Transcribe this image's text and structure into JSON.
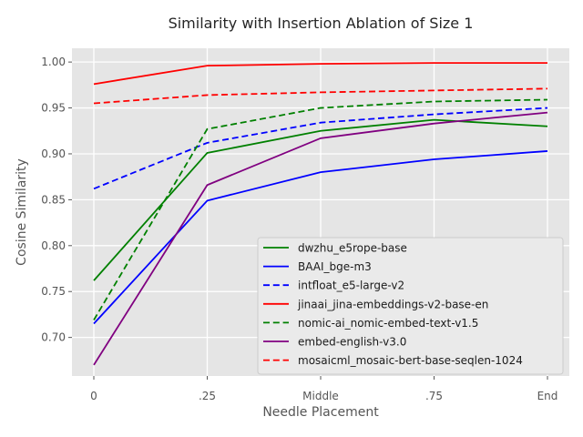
{
  "figure": {
    "title": "Similarity with Insertion Ablation of Size 1",
    "xlabel": "Needle Placement",
    "ylabel": "Cosine Similarity"
  },
  "chart_data": {
    "type": "line",
    "title": "Similarity with Insertion Ablation of Size 1",
    "xlabel": "Needle Placement",
    "ylabel": "Cosine Similarity",
    "categories": [
      "0",
      ".25",
      "Middle",
      ".75",
      "End"
    ],
    "yticks": [
      0.7,
      0.75,
      0.8,
      0.85,
      0.9,
      0.95,
      1.0
    ],
    "ylim": [
      0.658,
      1.015
    ],
    "grid": true,
    "legend_position": "lower-right-inside",
    "series": [
      {
        "name": "dwzhu_e5rope-base",
        "color": "#008000",
        "dash": "solid",
        "values": [
          0.762,
          0.901,
          0.925,
          0.937,
          0.93
        ]
      },
      {
        "name": "BAAI_bge-m3",
        "color": "#0000ff",
        "dash": "solid",
        "values": [
          0.715,
          0.849,
          0.88,
          0.894,
          0.903
        ]
      },
      {
        "name": "intfloat_e5-large-v2",
        "color": "#0000ff",
        "dash": "dashed",
        "values": [
          0.862,
          0.912,
          0.934,
          0.943,
          0.95
        ]
      },
      {
        "name": "jinaai_jina-embeddings-v2-base-en",
        "color": "#ff0000",
        "dash": "solid",
        "values": [
          0.976,
          0.996,
          0.998,
          0.999,
          0.999
        ]
      },
      {
        "name": "nomic-ai_nomic-embed-text-v1.5",
        "color": "#008000",
        "dash": "dashed",
        "values": [
          0.719,
          0.927,
          0.95,
          0.957,
          0.959
        ]
      },
      {
        "name": "embed-english-v3.0",
        "color": "#800080",
        "dash": "solid",
        "values": [
          0.67,
          0.866,
          0.917,
          0.933,
          0.945
        ]
      },
      {
        "name": "mosaicml_mosaic-bert-base-seqlen-1024",
        "color": "#ff0000",
        "dash": "dashed",
        "values": [
          0.955,
          0.964,
          0.967,
          0.969,
          0.971
        ]
      }
    ]
  },
  "style": {
    "plot_bg": "#e5e5e5",
    "grid_color": "#ffffff",
    "tick_color": "#555555",
    "label_color": "#555555",
    "title_color": "#262626",
    "legend_bg": "#eaeaea",
    "legend_border": "#cccccc",
    "legend_text": "#1a1a1a"
  }
}
